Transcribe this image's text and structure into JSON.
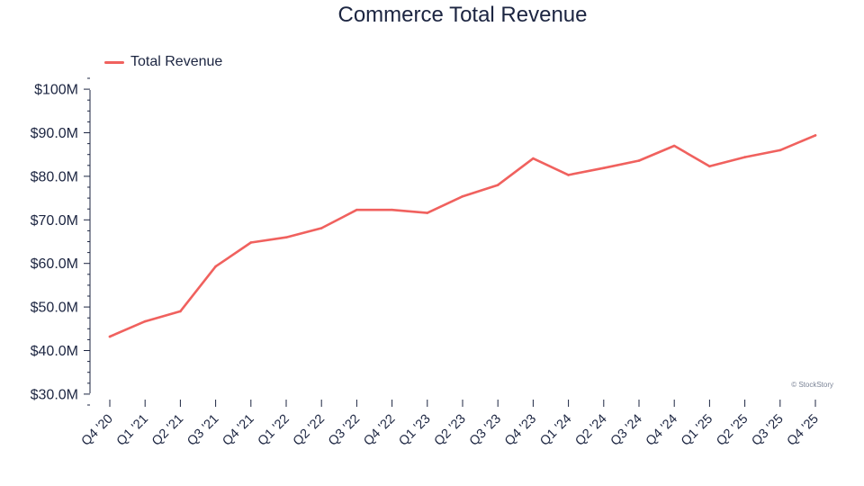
{
  "chart_data": {
    "type": "line",
    "title": "Commerce Total Revenue",
    "xlabel": "",
    "ylabel": "",
    "categories": [
      "Q4 '20",
      "Q1 '21",
      "Q2 '21",
      "Q3 '21",
      "Q4 '21",
      "Q1 '22",
      "Q2 '22",
      "Q3 '22",
      "Q4 '22",
      "Q1 '23",
      "Q2 '23",
      "Q3 '23",
      "Q4 '23",
      "Q1 '24",
      "Q2 '24",
      "Q3 '24",
      "Q4 '24",
      "Q1 '25",
      "Q2 '25",
      "Q3 '25",
      "Q4 '25"
    ],
    "series": [
      {
        "name": "Total Revenue",
        "color": "#f0615e",
        "values": [
          43.2,
          46.7,
          49.0,
          59.3,
          64.8,
          66.0,
          68.1,
          72.3,
          72.3,
          71.6,
          75.4,
          78.0,
          84.1,
          80.3,
          81.9,
          83.6,
          87.0,
          82.3,
          84.4,
          86.0,
          89.4
        ]
      }
    ],
    "ylim": [
      27.5,
      102.5
    ],
    "yticks": [
      30,
      40,
      50,
      60,
      70,
      80,
      90,
      100
    ],
    "ytick_labels": [
      "$30.0M",
      "$40.0M",
      "$50.0M",
      "$60.0M",
      "$70.0M",
      "$80.0M",
      "$90.0M",
      "$100M"
    ],
    "legend": "top-left",
    "grid": false
  },
  "credit": "© StockStory",
  "colors": {
    "text": "#1c2541",
    "axis": "#1c2541",
    "line": "#f0615e"
  }
}
